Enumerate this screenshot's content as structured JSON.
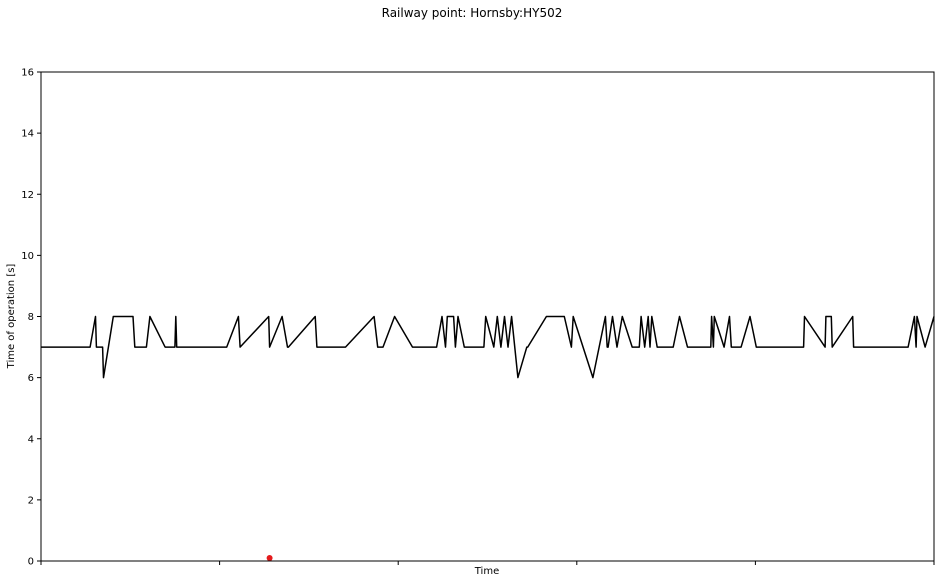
{
  "chart_data": {
    "type": "line",
    "title": "Railway point: Hornsby:HY502",
    "xlabel": "Time",
    "ylabel": "Time of operation [s]",
    "ylim": [
      0,
      16
    ],
    "yticks": [
      0,
      2,
      4,
      6,
      8,
      10,
      12,
      14,
      16
    ],
    "xtick_count": 6,
    "xlim": [
      0,
      100
    ],
    "grid": false,
    "legend": "none",
    "series": [
      {
        "color": "#000000",
        "x": [
          0,
          5.5,
          6.1,
          6.2,
          6.9,
          7.0,
          8.1,
          10.3,
          10.5,
          11.8,
          12.2,
          13.9,
          15.0,
          15.1,
          15.2,
          20.8,
          22.1,
          22.3,
          25.5,
          25.6,
          27.0,
          27.6,
          27.7,
          30.7,
          30.9,
          34.1,
          37.3,
          37.7,
          38.0,
          38.3,
          39.6,
          41.6,
          44.1,
          44.3,
          44.9,
          45.3,
          45.5,
          46.2,
          46.4,
          46.7,
          47.4,
          49.6,
          49.8,
          50.7,
          51.1,
          51.5,
          51.9,
          52.3,
          52.7,
          53.4,
          54.4,
          54.5,
          56.6,
          58.6,
          59.4,
          59.6,
          61.8,
          63.2,
          63.4,
          63.5,
          64.0,
          64.5,
          65.1,
          66.2,
          67.0,
          67.2,
          67.6,
          68.0,
          68.2,
          68.4,
          69.0,
          70.8,
          71.5,
          72.4,
          75.0,
          75.1,
          75.3,
          75.4,
          76.5,
          77.1,
          77.3,
          78.4,
          79.4,
          80.1,
          80.6,
          85.4,
          85.5,
          87.8,
          87.9,
          88.5,
          88.6,
          90.9,
          91.0,
          97.1,
          97.8,
          98.0,
          98.1,
          99.0,
          100
        ],
        "y": [
          7,
          7,
          8,
          7,
          7,
          6,
          8,
          8,
          7,
          7,
          8,
          7,
          7,
          8,
          7,
          7,
          8,
          7,
          8,
          7,
          8,
          7,
          7,
          8,
          7,
          7,
          8,
          7,
          7,
          7,
          8,
          7,
          7,
          7,
          8,
          7,
          8,
          8,
          7,
          8,
          7,
          7,
          8,
          7,
          8,
          7,
          8,
          7,
          8,
          6,
          7,
          7,
          8,
          8,
          7,
          8,
          6,
          8,
          7,
          7,
          8,
          7,
          8,
          7,
          7,
          8,
          7,
          8,
          7,
          8,
          7,
          7,
          8,
          7,
          7,
          8,
          7,
          8,
          7,
          8,
          7,
          7,
          8,
          7,
          7,
          7,
          8,
          7,
          8,
          8,
          7,
          8,
          7,
          7,
          8,
          7,
          8,
          7,
          8
        ]
      }
    ],
    "markers": [
      {
        "x": 25.6,
        "y": 0.1,
        "color": "#e41a1c"
      }
    ]
  }
}
